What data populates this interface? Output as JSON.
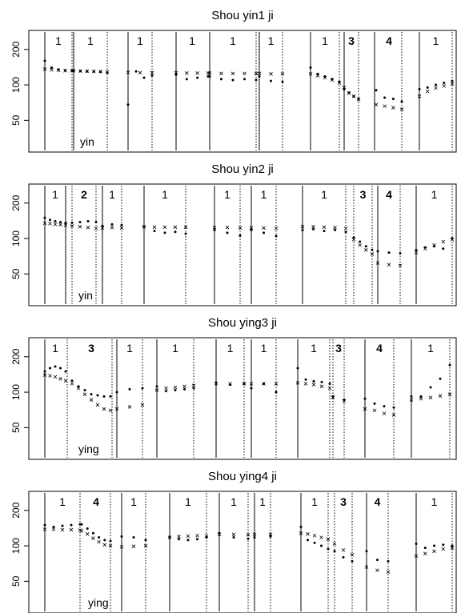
{
  "chart_data": [
    {
      "type": "scatter",
      "title": "Shou yin1 ji",
      "yticks": [
        50,
        100,
        200
      ],
      "ylim": [
        30,
        260
      ],
      "segments": [
        {
          "tone": "1",
          "tone_bold": false
        },
        {
          "tone": "1",
          "tone_bold": false,
          "syllable": "yin"
        },
        {
          "tone": "1",
          "tone_bold": false
        },
        {
          "tone": "1",
          "tone_bold": false
        },
        {
          "tone": "1",
          "tone_bold": false
        },
        {
          "tone": "1",
          "tone_bold": false
        },
        {
          "tone": "1",
          "tone_bold": false
        },
        {
          "tone": "3",
          "tone_bold": true
        },
        {
          "tone": "4",
          "tone_bold": true
        },
        {
          "tone": "1",
          "tone_bold": false
        }
      ],
      "series": [
        {
          "name": "",
          "marker": "cross",
          "segments": [
            [
              136,
              134,
              133,
              132,
              132
            ],
            [
              132,
              131,
              131,
              130,
              130,
              129
            ],
            [
              128,
              127,
              127
            ],
            [
              127,
              126,
              126,
              126
            ],
            [
              126,
              125,
              125,
              125,
              125
            ],
            [
              125,
              124,
              124
            ],
            [
              124,
              120,
              115,
              110,
              104
            ],
            [
              95,
              85,
              80,
              75
            ],
            [
              68,
              66,
              64,
              62
            ],
            [
              80,
              88,
              94,
              98,
              102
            ]
          ]
        },
        {
          "name": "",
          "marker": "dot",
          "segments": [
            [
              160,
              140,
              135,
              133,
              132
            ],
            [
              132,
              131,
              130,
              130,
              129,
              127
            ],
            [
              68,
              130,
              115,
              120
            ],
            [
              122,
              112,
              115,
              118
            ],
            [
              118,
              112,
              110,
              112,
              110
            ],
            [
              118,
              108,
              106
            ],
            [
              140,
              124,
              118,
              112,
              106
            ],
            [
              92,
              86,
              80,
              76
            ],
            [
              90,
              78,
              76,
              72
            ],
            [
              92,
              95,
              100,
              104,
              108
            ]
          ]
        }
      ]
    },
    {
      "type": "scatter",
      "title": "Shou yin2 ji",
      "yticks": [
        50,
        100,
        200
      ],
      "ylim": [
        30,
        260
      ],
      "segments": [
        {
          "tone": "1",
          "tone_bold": false
        },
        {
          "tone": "2",
          "tone_bold": true,
          "syllable": "yin"
        },
        {
          "tone": "1",
          "tone_bold": false
        },
        {
          "tone": "1",
          "tone_bold": false
        },
        {
          "tone": "1",
          "tone_bold": false
        },
        {
          "tone": "1",
          "tone_bold": false
        },
        {
          "tone": "1",
          "tone_bold": false
        },
        {
          "tone": "3",
          "tone_bold": true
        },
        {
          "tone": "4",
          "tone_bold": true
        },
        {
          "tone": "1",
          "tone_bold": false
        }
      ],
      "series": [
        {
          "name": "",
          "marker": "cross",
          "segments": [
            [
              135,
              134,
              132,
              131,
              130
            ],
            [
              128,
              126,
              124,
              122
            ],
            [
              123,
              124,
              123
            ],
            [
              126,
              125,
              125,
              125,
              125
            ],
            [
              124,
              124,
              123
            ],
            [
              123,
              123,
              122
            ],
            [
              126,
              126,
              125,
              124,
              122
            ],
            [
              98,
              88,
              80,
              74
            ],
            [
              62,
              60,
              59
            ],
            [
              76,
              82,
              88,
              94,
              98
            ]
          ]
        },
        {
          "name": "",
          "marker": "dot",
          "segments": [
            [
              150,
              144,
              140,
              138,
              136
            ],
            [
              136,
              138,
              140,
              138
            ],
            [
              128,
              132,
              130
            ],
            [
              126,
              116,
              112,
              114,
              110
            ],
            [
              118,
              112,
              106
            ],
            [
              118,
              112,
              105
            ],
            [
              118,
              120,
              116,
              118,
              114
            ],
            [
              102,
              94,
              86,
              80
            ],
            [
              78,
              76,
              75
            ],
            [
              80,
              84,
              86,
              82,
              100
            ]
          ]
        }
      ]
    },
    {
      "type": "scatter",
      "title": "Shou ying3 ji",
      "yticks": [
        50,
        100,
        200
      ],
      "ylim": [
        30,
        260
      ],
      "segments": [
        {
          "tone": "1",
          "tone_bold": false
        },
        {
          "tone": "3",
          "tone_bold": true,
          "syllable": "ying"
        },
        {
          "tone": "1",
          "tone_bold": false
        },
        {
          "tone": "1",
          "tone_bold": false
        },
        {
          "tone": "1",
          "tone_bold": false
        },
        {
          "tone": "1",
          "tone_bold": false
        },
        {
          "tone": "1",
          "tone_bold": false
        },
        {
          "tone": "3",
          "tone_bold": true
        },
        {
          "tone": "4",
          "tone_bold": true
        },
        {
          "tone": "1",
          "tone_bold": false
        }
      ],
      "series": [
        {
          "name": "",
          "marker": "cross",
          "segments": [
            [
              140,
              138,
              135,
              130,
              125
            ],
            [
              118,
              108,
              96,
              86,
              78,
              72,
              70
            ],
            [
              72,
              75,
              78
            ],
            [
              104,
              108,
              110,
              112,
              114
            ],
            [
              118,
              118,
              118
            ],
            [
              118,
              118,
              118
            ],
            [
              120,
              118,
              116,
              112,
              108
            ],
            [
              90,
              84
            ],
            [
              72,
              70,
              66,
              64
            ],
            [
              86,
              88,
              90,
              93,
              96
            ]
          ]
        },
        {
          "name": "",
          "marker": "dot",
          "segments": [
            [
              150,
              160,
              165,
              160,
              150
            ],
            [
              125,
              112,
              104,
              96,
              94,
              92,
              92
            ],
            [
              100,
              106,
              108
            ],
            [
              112,
              102,
              104,
              106,
              108
            ],
            [
              120,
              116,
              118
            ],
            [
              108,
              118,
              100
            ],
            [
              160,
              128,
              124,
              122,
              118
            ],
            [
              92,
              86
            ],
            [
              88,
              80,
              76,
              74
            ],
            [
              92,
              92,
              110,
              130,
              170
            ]
          ]
        }
      ]
    },
    {
      "type": "scatter",
      "title": "Shou ying4 ji",
      "yticks": [
        50,
        100,
        200
      ],
      "ylim": [
        30,
        260
      ],
      "segments": [
        {
          "tone": "1",
          "tone_bold": false
        },
        {
          "tone": "4",
          "tone_bold": true,
          "syllable": "ying"
        },
        {
          "tone": "1",
          "tone_bold": false
        },
        {
          "tone": "1",
          "tone_bold": false
        },
        {
          "tone": "1",
          "tone_bold": false
        },
        {
          "tone": "1",
          "tone_bold": false
        },
        {
          "tone": "1",
          "tone_bold": false
        },
        {
          "tone": "3",
          "tone_bold": true
        },
        {
          "tone": "4",
          "tone_bold": true
        },
        {
          "tone": "1",
          "tone_bold": false
        }
      ],
      "series": [
        {
          "name": "",
          "marker": "cross",
          "segments": [
            [
              138,
              138,
              137,
              137,
              136
            ],
            [
              134,
              126,
              116,
              108,
              102,
              100
            ],
            [
              98,
              99,
              100
            ],
            [
              118,
              120,
              121,
              122,
              122
            ],
            [
              125,
              125,
              124
            ],
            [
              125,
              125
            ],
            [
              128,
              126,
              122,
              118,
              114
            ],
            [
              104,
              92,
              84
            ],
            [
              66,
              62,
              60
            ],
            [
              82,
              86,
              90,
              94,
              96
            ]
          ]
        },
        {
          "name": "",
          "marker": "dot",
          "segments": [
            [
              150,
              145,
              148,
              150,
              152
            ],
            [
              152,
              140,
              128,
              118,
              112,
              110
            ],
            [
              120,
              118,
              112
            ],
            [
              118,
              114,
              112,
              114,
              118
            ],
            [
              128,
              118,
              115
            ],
            [
              118,
              120
            ],
            [
              145,
              112,
              106,
              100,
              94
            ],
            [
              90,
              80,
              74
            ],
            [
              90,
              76,
              74
            ],
            [
              104,
              96,
              100,
              102,
              100
            ]
          ]
        }
      ]
    }
  ]
}
